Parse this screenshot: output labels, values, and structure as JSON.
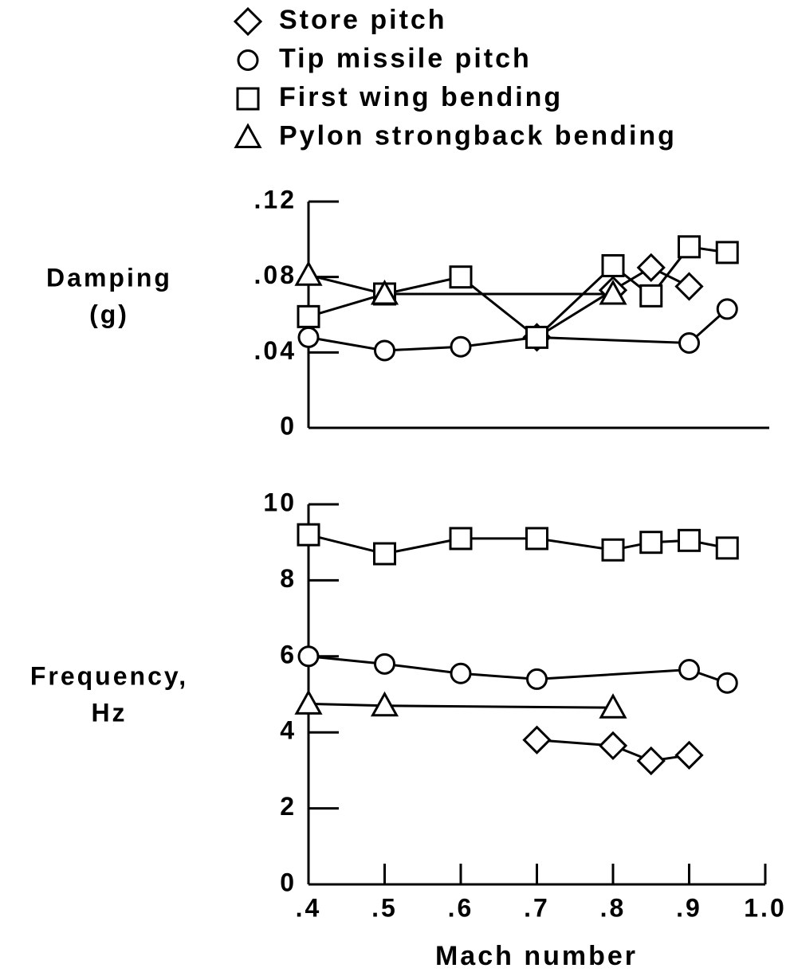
{
  "chart_data": [
    {
      "type": "line",
      "ylabel": [
        "Damping",
        "(g)"
      ],
      "xlim": [
        0.4,
        1.0
      ],
      "ylim": [
        0,
        0.12
      ],
      "yticks": [
        0,
        {
          "value": 0.04,
          "label": ".04"
        },
        {
          "value": 0.08,
          "label": ".08"
        },
        {
          "value": 0.12,
          "label": ".12"
        }
      ],
      "series": [
        {
          "name": "Store pitch",
          "marker": "diamond",
          "color": "#000000",
          "x": [
            0.7,
            0.8,
            0.85,
            0.9
          ],
          "values": [
            0.048,
            0.073,
            0.085,
            0.075
          ]
        },
        {
          "name": "Tip missile pitch",
          "marker": "circle",
          "color": "#000000",
          "x": [
            0.4,
            0.5,
            0.6,
            0.7,
            0.9,
            0.95
          ],
          "values": [
            0.048,
            0.041,
            0.043,
            0.048,
            0.045,
            0.063
          ]
        },
        {
          "name": "First wing bending",
          "marker": "square",
          "color": "#000000",
          "x": [
            0.4,
            0.5,
            0.6,
            0.7,
            0.8,
            0.85,
            0.9,
            0.95
          ],
          "values": [
            0.059,
            0.071,
            0.08,
            0.048,
            0.086,
            0.07,
            0.096,
            0.093
          ]
        },
        {
          "name": "Pylon strongback bending",
          "marker": "triangle",
          "color": "#000000",
          "x": [
            0.4,
            0.5,
            0.8
          ],
          "values": [
            0.081,
            0.071,
            0.071
          ]
        }
      ]
    },
    {
      "type": "line",
      "ylabel": [
        "Frequency,",
        "Hz"
      ],
      "xlabel": "Mach number",
      "xlim": [
        0.4,
        1.0
      ],
      "xticks": [
        {
          "value": 0.4,
          "label": ".4"
        },
        {
          "value": 0.5,
          "label": ".5"
        },
        {
          "value": 0.6,
          "label": ".6"
        },
        {
          "value": 0.7,
          "label": ".7"
        },
        {
          "value": 0.8,
          "label": ".8"
        },
        {
          "value": 0.9,
          "label": ".9"
        },
        {
          "value": 1.0,
          "label": "1.0"
        }
      ],
      "ylim": [
        0,
        10
      ],
      "yticks": [
        0,
        2,
        4,
        6,
        8,
        10
      ],
      "series": [
        {
          "marker": "diamond",
          "color": "#000000",
          "x": [
            0.7,
            0.8,
            0.85,
            0.9
          ],
          "values": [
            3.8,
            3.65,
            3.25,
            3.4
          ]
        },
        {
          "marker": "circle",
          "color": "#000000",
          "x": [
            0.4,
            0.5,
            0.6,
            0.7,
            0.9,
            0.95
          ],
          "values": [
            6.0,
            5.8,
            5.55,
            5.4,
            5.65,
            5.3
          ]
        },
        {
          "marker": "square",
          "color": "#000000",
          "x": [
            0.4,
            0.5,
            0.6,
            0.7,
            0.8,
            0.85,
            0.9,
            0.95
          ],
          "values": [
            9.2,
            8.7,
            9.1,
            9.1,
            8.8,
            9.0,
            9.05,
            8.85
          ]
        },
        {
          "marker": "triangle",
          "color": "#000000",
          "x": [
            0.4,
            0.5,
            0.8
          ],
          "values": [
            4.75,
            4.7,
            4.65
          ]
        }
      ]
    }
  ]
}
